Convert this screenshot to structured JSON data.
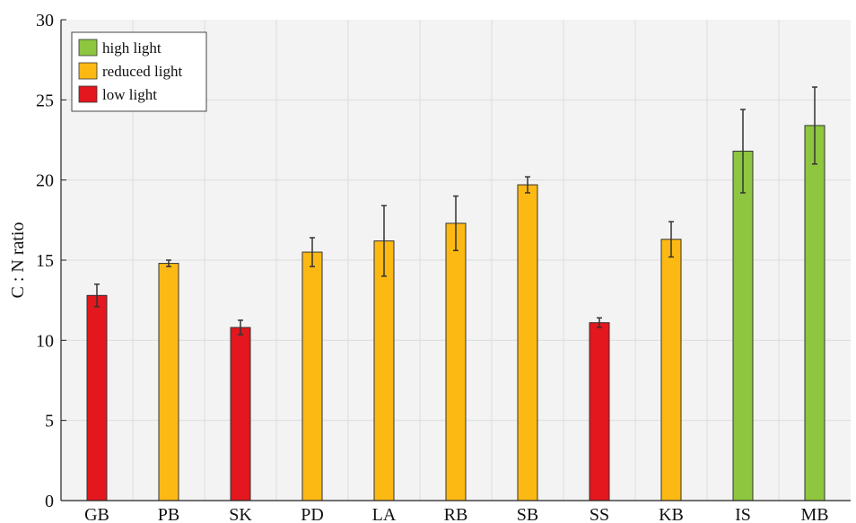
{
  "chart_data": {
    "type": "bar",
    "title": "",
    "xlabel": "",
    "ylabel": "C : N ratio",
    "ylim": [
      0,
      30
    ],
    "yticks": [
      0,
      5,
      10,
      15,
      20,
      25,
      30
    ],
    "grid": true,
    "legend_position": "top-left",
    "categories": [
      "GB",
      "PB",
      "SK",
      "PD",
      "LA",
      "RB",
      "SB",
      "SS",
      "KB",
      "IS",
      "MB"
    ],
    "values": [
      12.8,
      14.8,
      10.8,
      15.5,
      16.2,
      17.3,
      19.7,
      11.1,
      16.3,
      21.8,
      23.4
    ],
    "errors": [
      0.7,
      0.2,
      0.45,
      0.9,
      2.2,
      1.7,
      0.5,
      0.3,
      1.1,
      2.6,
      2.4
    ],
    "groups": [
      "low light",
      "reduced light",
      "low light",
      "reduced light",
      "reduced light",
      "reduced light",
      "reduced light",
      "low light",
      "reduced light",
      "high light",
      "high light"
    ],
    "legend": [
      {
        "label": "high light",
        "color": "#8ec63f"
      },
      {
        "label": "reduced light",
        "color": "#fdb913"
      },
      {
        "label": "low light",
        "color": "#e3171d"
      }
    ]
  }
}
